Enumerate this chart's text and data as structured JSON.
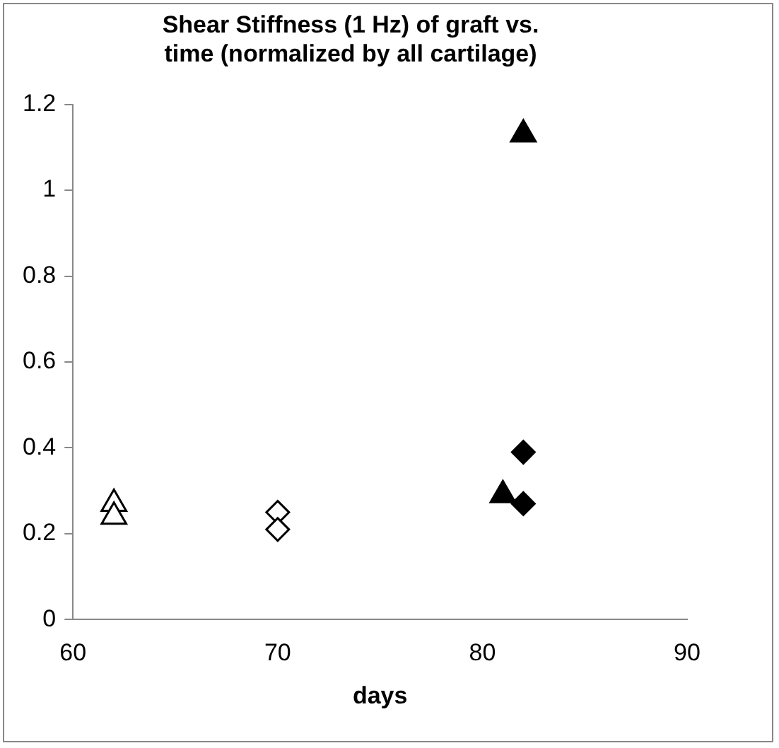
{
  "chart_data": {
    "type": "scatter",
    "title": [
      "Shear Stiffness (1 Hz) of graft vs.",
      "time (normalized by all cartilage)"
    ],
    "xlabel": "days",
    "series": [
      {
        "x": [
          62,
          62
        ],
        "values": [
          0.27,
          0.24
        ],
        "color": "#ffffff",
        "marker": "triangle"
      },
      {
        "x": [
          70,
          70
        ],
        "values": [
          0.25,
          0.21
        ],
        "color": "#ffffff",
        "marker": "diamond"
      },
      {
        "x": [
          82,
          81
        ],
        "values": [
          1.13,
          0.29
        ],
        "color": "#000000",
        "marker": "triangle"
      },
      {
        "x": [
          82,
          82
        ],
        "values": [
          0.39,
          0.27
        ],
        "color": "#000000",
        "marker": "diamond"
      }
    ],
    "xlim": [
      60,
      90
    ],
    "xticks": [
      60,
      70,
      80,
      90
    ],
    "ylim": [
      0,
      1.2
    ],
    "yticks": [
      0,
      0.2,
      0.4,
      0.6,
      0.8,
      1,
      1.2
    ],
    "grid": false,
    "legend": false
  }
}
